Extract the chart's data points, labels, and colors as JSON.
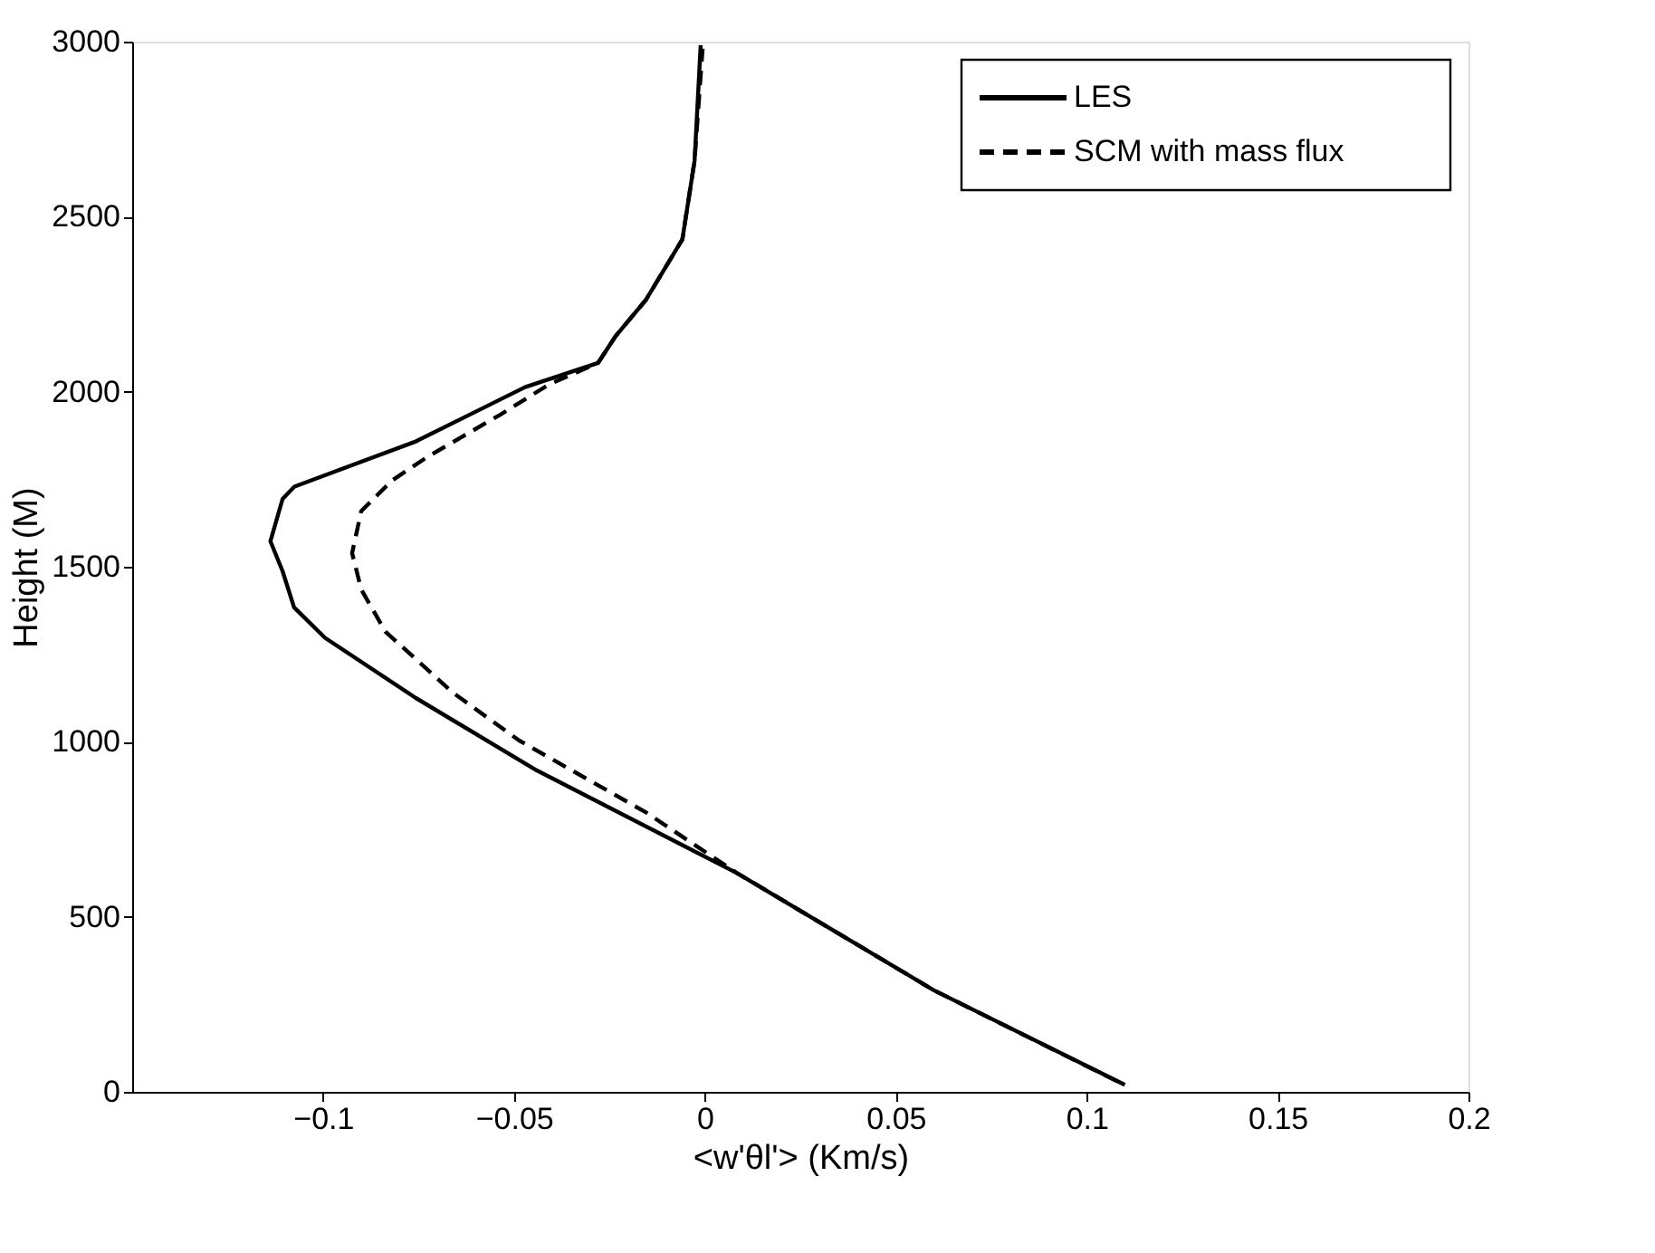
{
  "chart_data": {
    "type": "line",
    "xlabel": "<w'θl'> (Km/s)",
    "ylabel": "Height (M)",
    "xlim": [
      -0.15,
      0.2
    ],
    "xticks": [
      -0.1,
      -0.05,
      0,
      0.05,
      0.1,
      0.15,
      0.2
    ],
    "ylim": [
      0,
      3000
    ],
    "yticks": [
      0,
      500,
      1000,
      1500,
      2000,
      2500,
      3000
    ],
    "grid": false,
    "legend": "top right",
    "marker": "none",
    "series": [
      {
        "name": "LES",
        "color": "#000000",
        "line_style": "solid",
        "x": [
          0.11,
          0.06,
          0.0084,
          -0.044,
          -0.0757,
          -0.0995,
          -0.1076,
          -0.1106,
          -0.1138,
          -0.1106,
          -0.1075,
          -0.0757,
          -0.0471,
          -0.028,
          -0.0233,
          -0.0154,
          -0.0059,
          -0.0027,
          -0.0011
        ],
        "values": [
          20,
          290,
          625,
          918,
          1125,
          1297,
          1384,
          1487,
          1573,
          1694,
          1729,
          1858,
          2013,
          2082,
          2160,
          2263,
          2435,
          2660,
          2990
        ]
      },
      {
        "name": "SCM with mass flux",
        "color": "#000000",
        "line_style": "dashed",
        "x": [
          0.108,
          0.06,
          0.0084,
          -0.0154,
          -0.0487,
          -0.0662,
          -0.0837,
          -0.09,
          -0.0924,
          -0.09,
          -0.082,
          -0.0725,
          -0.0535,
          -0.0408,
          -0.028,
          -0.0233,
          -0.0154,
          -0.0059,
          -0.0027,
          -0.0006
        ],
        "values": [
          30,
          290,
          625,
          798,
          1004,
          1142,
          1315,
          1435,
          1539,
          1659,
          1746,
          1815,
          1935,
          2021,
          2082,
          2160,
          2263,
          2435,
          2660,
          2980
        ]
      }
    ]
  }
}
